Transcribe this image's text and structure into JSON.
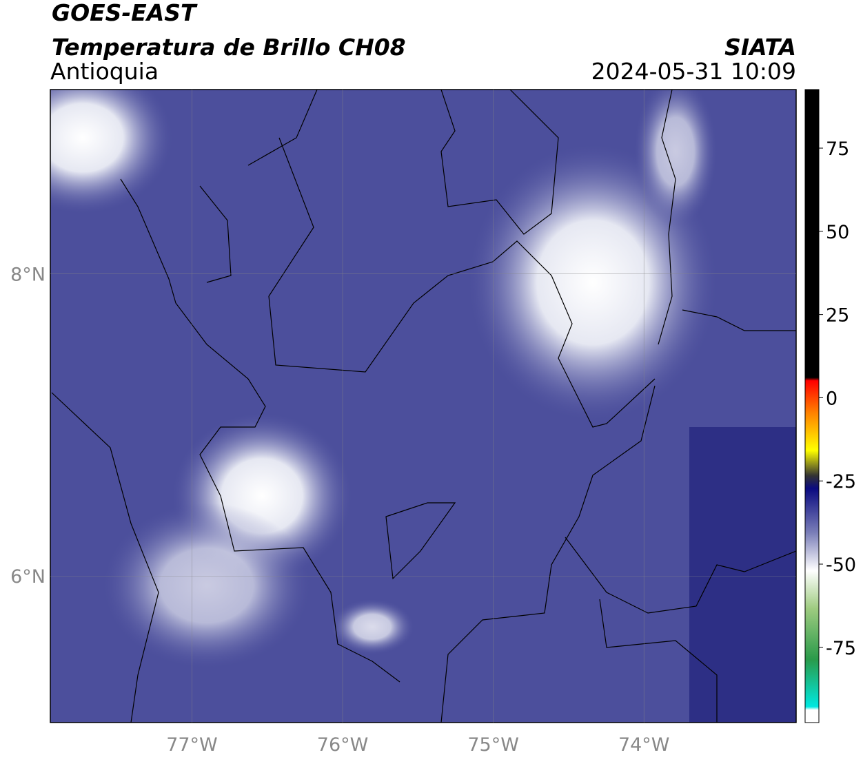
{
  "header": {
    "title": "GOES-EAST",
    "subtitle": "Temperatura de Brillo CH08",
    "region": "Antioquia",
    "source": "SIATA",
    "datetime": "2024-05-31 10:09"
  },
  "map": {
    "lonlim": [
      -77.94,
      -72.99
    ],
    "latlim": [
      5.03,
      9.22
    ],
    "lon_ticks": [
      {
        "value": -77,
        "label": "77°W"
      },
      {
        "value": -76,
        "label": "76°W"
      },
      {
        "value": -75,
        "label": "75°W"
      },
      {
        "value": -74,
        "label": "74°W"
      }
    ],
    "lat_ticks": [
      {
        "value": 8,
        "label": "8°N"
      },
      {
        "value": 6,
        "label": "6°N"
      }
    ]
  },
  "colorbar": {
    "lim": [
      -97.6,
      92.6
    ],
    "ticks": [
      75,
      50,
      25,
      0,
      -25,
      -50,
      -75
    ]
  }
}
